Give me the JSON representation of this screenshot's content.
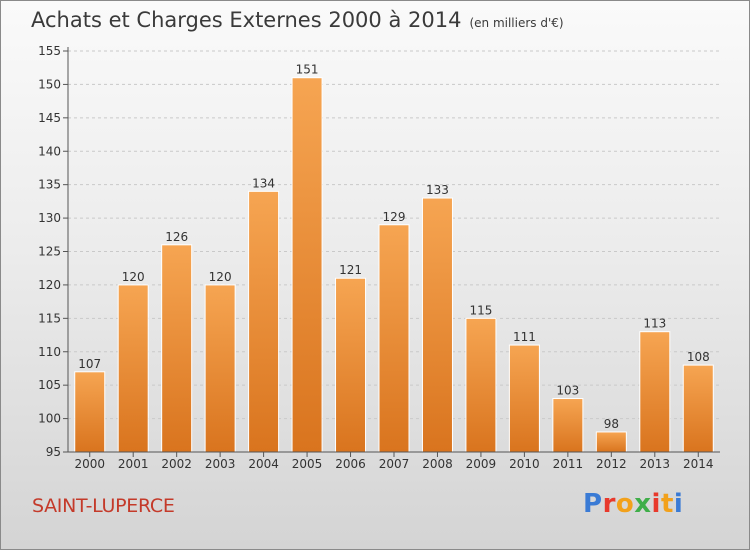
{
  "header": {
    "title": "Achats et Charges Externes 2000 à 2014",
    "unit": "(en milliers d'€)"
  },
  "footer": {
    "commune": "SAINT-LUPERCE",
    "logo_text": "Proxiti"
  },
  "colors": {
    "bar_light": "#f6a552",
    "bar_dark": "#d9741e",
    "commune_text": "#c43a2a",
    "logo_letters": [
      "#3a7bd5",
      "#e8392c",
      "#f2a11b",
      "#3fae49",
      "#e8392c",
      "#f2a11b",
      "#3a7bd5"
    ]
  },
  "chart_data": {
    "type": "bar",
    "categories": [
      "2000",
      "2001",
      "2002",
      "2003",
      "2004",
      "2005",
      "2006",
      "2007",
      "2008",
      "2009",
      "2010",
      "2011",
      "2012",
      "2013",
      "2014"
    ],
    "values": [
      107,
      120,
      126,
      120,
      134,
      151,
      121,
      129,
      133,
      115,
      111,
      103,
      98,
      113,
      108
    ],
    "title": "Achats et Charges Externes 2000 à 2014",
    "xlabel": "",
    "ylabel": "",
    "ylim": [
      95,
      155
    ],
    "yticks": [
      95,
      100,
      105,
      110,
      115,
      120,
      125,
      130,
      135,
      140,
      145,
      150,
      155
    ],
    "grid": true,
    "legend": "none"
  }
}
